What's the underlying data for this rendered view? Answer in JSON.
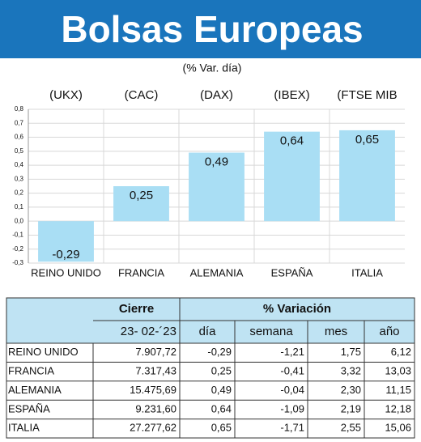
{
  "chart_data": {
    "type": "bar",
    "title": "Bolsas Europeas",
    "subtitle": "(% Var. día)",
    "index_labels": [
      "(UKX)",
      "(CAC)",
      "(DAX)",
      "(IBEX)",
      "(FTSE MIB"
    ],
    "categories": [
      "REINO UNIDO",
      "FRANCIA",
      "ALEMANIA",
      "ESPAÑA",
      "ITALIA"
    ],
    "values": [
      -0.29,
      0.25,
      0.49,
      0.64,
      0.65
    ],
    "value_labels": [
      "-0,29",
      "0,25",
      "0,49",
      "0,64",
      "0,65"
    ],
    "color": "#a9def4",
    "ylim": [
      -0.3,
      0.8
    ],
    "yticks": [
      {
        "value": 0.8,
        "label": "0,8"
      },
      {
        "value": 0.7,
        "label": "0,7"
      },
      {
        "value": 0.6,
        "label": "0,6"
      },
      {
        "value": 0.5,
        "label": "0,5"
      },
      {
        "value": 0.4,
        "label": "0,4"
      },
      {
        "value": 0.3,
        "label": "0,3"
      },
      {
        "value": 0.2,
        "label": "0,2"
      },
      {
        "value": 0.1,
        "label": "0,1"
      },
      {
        "value": 0,
        "label": "0,0"
      },
      {
        "value": -0.1,
        "label": "-0,1"
      },
      {
        "value": -0.2,
        "label": "-0,2"
      },
      {
        "value": -0.3,
        "label": "-0,3"
      }
    ],
    "grid": true
  },
  "table": {
    "header": [
      "Cierre",
      "% Variación"
    ],
    "subheader": [
      "23- 02-´23",
      "día",
      "semana",
      "mes",
      "año"
    ],
    "rows": [
      [
        "REINO UNIDO",
        "7.907,72",
        "-0,29",
        "-1,21",
        "1,75",
        "6,12"
      ],
      [
        "FRANCIA",
        "7.317,43",
        "0,25",
        "-0,41",
        "3,32",
        "13,03"
      ],
      [
        "ALEMANIA",
        "15.475,69",
        "0,49",
        "-0,04",
        "2,30",
        "11,15"
      ],
      [
        "ESPAÑA",
        "9.231,60",
        "0,64",
        "-1,09",
        "2,19",
        "12,18"
      ],
      [
        "ITALIA",
        "27.277,62",
        "0,65",
        "-1,71",
        "2,55",
        "15,06"
      ]
    ]
  }
}
